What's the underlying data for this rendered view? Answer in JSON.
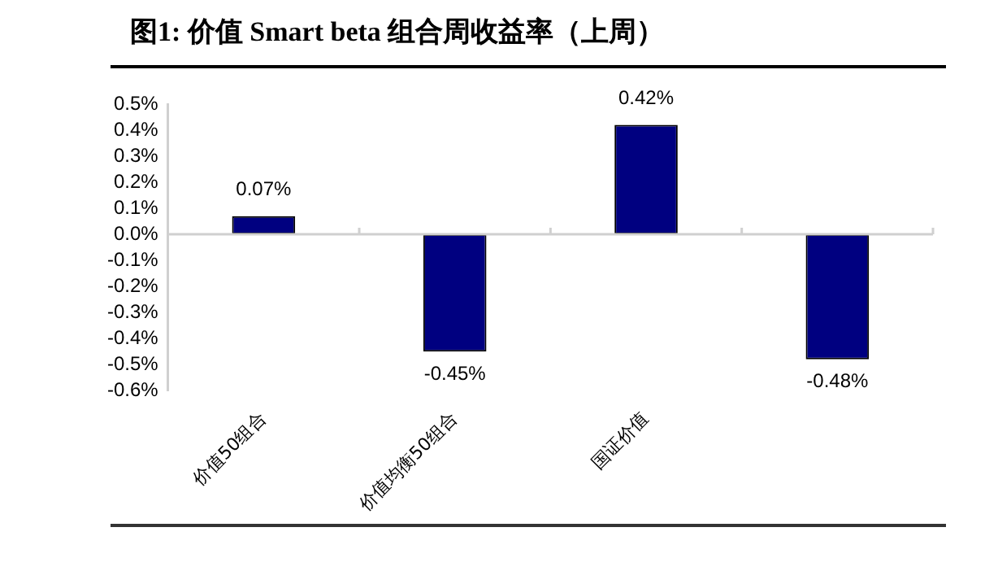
{
  "chart_data": {
    "type": "bar",
    "title": "图1:  价值 Smart beta 组合周收益率（上周）",
    "categories": [
      "价值50组合",
      "价值均衡50组合",
      "国证价值",
      null
    ],
    "values": [
      0.07,
      -0.45,
      0.42,
      -0.48
    ],
    "color": "#000080",
    "value_labels": [
      "0.07%",
      "-0.45%",
      "0.42%",
      "-0.48%"
    ],
    "ylim": [
      -0.6,
      0.5
    ],
    "yticks": [
      {
        "value": 0.5,
        "label": "0.5%"
      },
      {
        "value": 0.4,
        "label": "0.4%"
      },
      {
        "value": 0.3,
        "label": "0.3%"
      },
      {
        "value": 0.2,
        "label": "0.2%"
      },
      {
        "value": 0.1,
        "label": "0.1%"
      },
      {
        "value": 0,
        "label": "0.0%"
      },
      {
        "value": -0.1,
        "label": "-0.1%"
      },
      {
        "value": -0.2,
        "label": "-0.2%"
      },
      {
        "value": -0.3,
        "label": "-0.3%"
      },
      {
        "value": -0.4,
        "label": "-0.4%"
      },
      {
        "value": -0.5,
        "label": "-0.5%"
      },
      {
        "value": -0.6,
        "label": "-0.6%"
      }
    ],
    "legend": false
  }
}
